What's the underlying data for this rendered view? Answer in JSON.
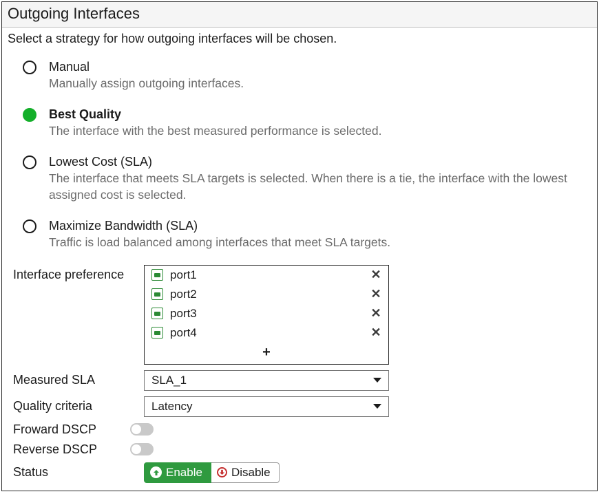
{
  "panel": {
    "title": "Outgoing Interfaces",
    "subtitle": "Select a strategy for how outgoing interfaces will be chosen."
  },
  "strategies": [
    {
      "key": "manual",
      "title": "Manual",
      "desc": "Manually assign outgoing interfaces.",
      "selected": false
    },
    {
      "key": "best_quality",
      "title": "Best Quality",
      "desc": "The interface with the best measured performance is selected.",
      "selected": true
    },
    {
      "key": "lowest_cost",
      "title": "Lowest Cost (SLA)",
      "desc": "The interface that meets SLA targets is selected. When there is a tie, the interface with the lowest assigned cost is selected.",
      "selected": false
    },
    {
      "key": "max_bandwidth",
      "title": "Maximize Bandwidth (SLA)",
      "desc": "Traffic is load balanced among interfaces that meet SLA targets.",
      "selected": false
    }
  ],
  "form": {
    "interface_preference_label": "Interface preference",
    "interfaces": [
      {
        "name": "port1"
      },
      {
        "name": "port2"
      },
      {
        "name": "port3"
      },
      {
        "name": "port4"
      }
    ],
    "add_glyph": "+",
    "remove_glyph": "✕",
    "measured_sla_label": "Measured SLA",
    "measured_sla_value": "SLA_1",
    "quality_criteria_label": "Quality criteria",
    "quality_criteria_value": "Latency",
    "forward_dscp_label": "Froward DSCP",
    "forward_dscp_on": false,
    "reverse_dscp_label": "Reverse DSCP",
    "reverse_dscp_on": false,
    "status_label": "Status",
    "status": {
      "enable_label": "Enable",
      "disable_label": "Disable",
      "value": "enable"
    }
  },
  "colors": {
    "radio_selected": "#14af2a",
    "enable_bg": "#2f9a3f",
    "disable_accent": "#c53030",
    "desc_text": "#6b6b6b",
    "border": "#2a2a2a"
  }
}
